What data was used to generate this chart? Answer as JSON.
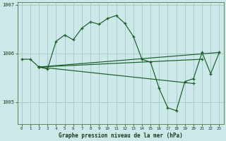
{
  "xlabel": "Graphe pression niveau de la mer (hPa)",
  "bg_color": "#cce8e8",
  "grid_color": "#aacccc",
  "line_color": "#1a5c28",
  "ylim": [
    1004.55,
    1007.05
  ],
  "xlim": [
    -0.5,
    23.5
  ],
  "yticks": [
    1005,
    1006,
    1007
  ],
  "ytick_labels": [
    "1005",
    "1006",
    "1007"
  ],
  "xticks": [
    0,
    1,
    2,
    3,
    4,
    5,
    6,
    7,
    8,
    9,
    10,
    11,
    12,
    13,
    14,
    15,
    16,
    17,
    18,
    19,
    20,
    21,
    22,
    23
  ],
  "main_curve": {
    "x": [
      0,
      1,
      2,
      3,
      4,
      5,
      6,
      7,
      8,
      9,
      10,
      11,
      12,
      13,
      14,
      15,
      16,
      17,
      18,
      19,
      20,
      21,
      22,
      23
    ],
    "y": [
      1005.88,
      1005.88,
      1005.72,
      1005.68,
      1006.25,
      1006.38,
      1006.28,
      1006.52,
      1006.65,
      1006.6,
      1006.72,
      1006.78,
      1006.62,
      1006.35,
      1005.88,
      1005.82,
      1005.28,
      1004.88,
      1004.82,
      1005.42,
      1005.48,
      1006.02,
      1005.58,
      1006.02
    ]
  },
  "fan_lines": [
    {
      "x": [
        2,
        23
      ],
      "y": [
        1005.72,
        1006.02
      ]
    },
    {
      "x": [
        2,
        21
      ],
      "y": [
        1005.72,
        1005.88
      ]
    },
    {
      "x": [
        2,
        20
      ],
      "y": [
        1005.72,
        1005.38
      ]
    }
  ]
}
